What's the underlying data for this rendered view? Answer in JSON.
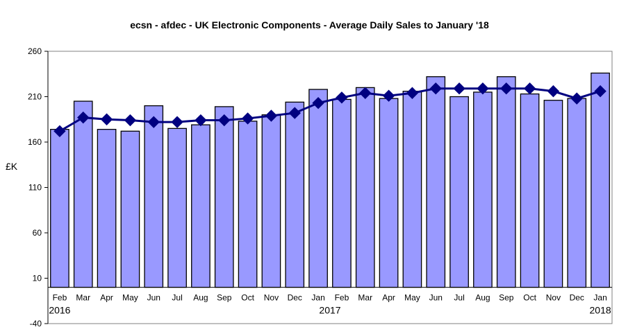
{
  "chart_data": {
    "type": "bar",
    "title": "ecsn - afdec - UK Electronic Components - Average Daily Sales to January '18",
    "ylabel": "£K",
    "xlabel": "",
    "ylim": [
      -40,
      260
    ],
    "yticks": [
      -40,
      10,
      60,
      110,
      160,
      210,
      260
    ],
    "grid": false,
    "categories": [
      "Feb",
      "Mar",
      "Apr",
      "May",
      "Jun",
      "Jul",
      "Aug",
      "Sep",
      "Oct",
      "Nov",
      "Dec",
      "Jan",
      "Feb",
      "Mar",
      "Apr",
      "May",
      "Jun",
      "Jul",
      "Aug",
      "Sep",
      "Oct",
      "Nov",
      "Dec",
      "Jan"
    ],
    "year_labels": [
      {
        "text": "2016",
        "index": 0
      },
      {
        "text": "2017",
        "index": 11.5
      },
      {
        "text": "2018",
        "index": 23
      }
    ],
    "series": [
      {
        "type": "bar",
        "color": "#9999ff",
        "values": [
          174,
          205,
          174,
          172,
          200,
          175,
          179,
          199,
          183,
          190,
          204,
          218,
          207,
          220,
          208,
          216,
          232,
          210,
          215,
          232,
          213,
          206,
          208,
          236
        ]
      },
      {
        "type": "line",
        "color": "#000080",
        "values": [
          172,
          187,
          185,
          184,
          182,
          182,
          184,
          184,
          186,
          189,
          192,
          203,
          209,
          214,
          211,
          214,
          219,
          219,
          219,
          219,
          219,
          216,
          208,
          216
        ]
      }
    ]
  }
}
